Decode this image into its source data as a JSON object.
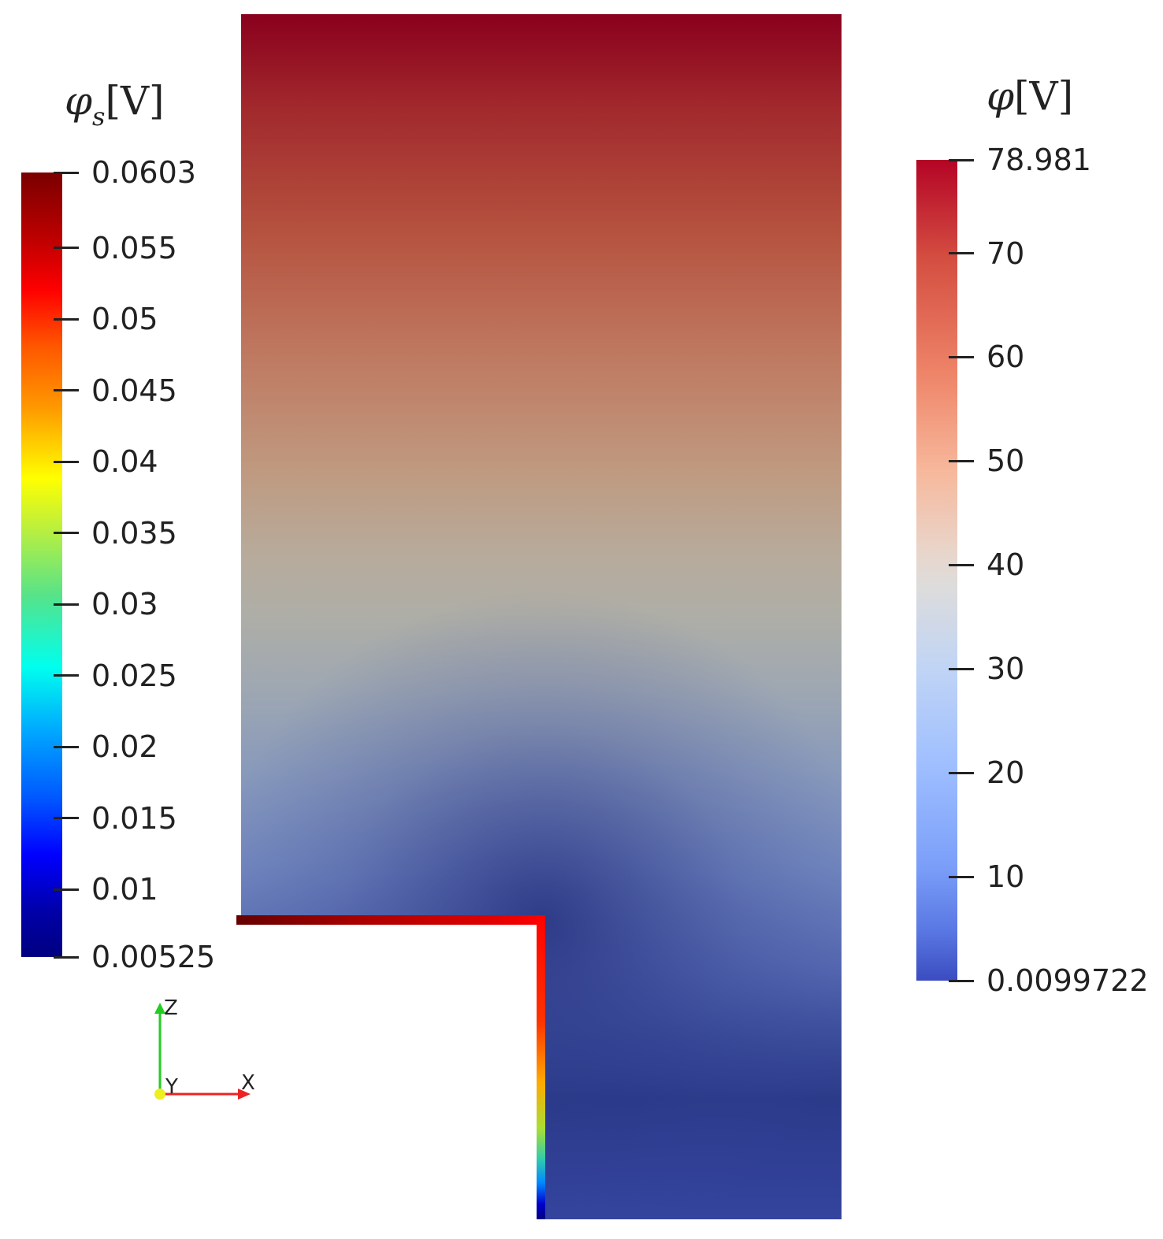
{
  "left_colorbar": {
    "title": "φs[V]",
    "title_symbol": "φ",
    "title_sub": "s",
    "title_unit": "[V]",
    "colormap": "jet",
    "range": [
      0.00525,
      0.0603
    ],
    "labels": [
      "0.0603",
      "0.055",
      "0.05",
      "0.045",
      "0.04",
      "0.035",
      "0.03",
      "0.025",
      "0.02",
      "0.015",
      "0.01",
      "0.00525"
    ]
  },
  "right_colorbar": {
    "title": "φ[V]",
    "title_symbol": "φ",
    "title_unit": "[V]",
    "colormap": "cool-warm",
    "range": [
      0.0099722,
      78.981
    ],
    "labels": [
      "78.981",
      "70",
      "60",
      "50",
      "40",
      "30",
      "20",
      "10",
      "0.0099722"
    ]
  },
  "orientation_axes": {
    "z_label": "Z",
    "y_label": "Y",
    "x_label": "X",
    "colors": {
      "z": "#22cc22",
      "x": "#ee2222",
      "y": "#eeee22"
    }
  },
  "field": {
    "colormap_top": "#8a001d",
    "colormap_bottom": "#2d3a8c"
  }
}
